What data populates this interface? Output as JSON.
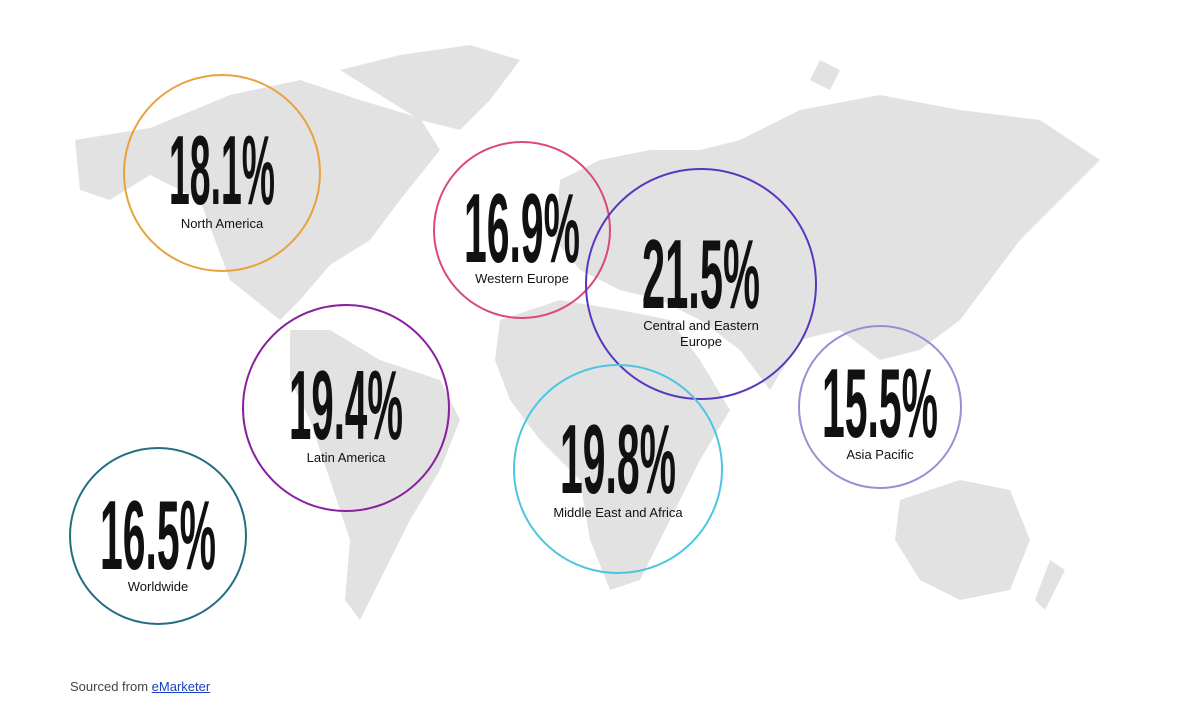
{
  "regions": [
    {
      "value": "18.1%",
      "label": "North America",
      "color": "#e8a23c"
    },
    {
      "value": "16.9%",
      "label": "Western Europe",
      "color": "#dc4a72"
    },
    {
      "value": "21.5%",
      "label": "Central and Eastern Europe",
      "color": "#5a36c0"
    },
    {
      "value": "19.4%",
      "label": "Latin America",
      "color": "#8a1fa0"
    },
    {
      "value": "19.8%",
      "label": "Middle East and Africa",
      "color": "#4cc6e0"
    },
    {
      "value": "15.5%",
      "label": "Asia Pacific",
      "color": "#a08ad4"
    },
    {
      "value": "16.5%",
      "label": "Worldwide",
      "color": "#256e80"
    }
  ],
  "footer": {
    "text": "Sourced from",
    "link": "eMarketer"
  }
}
